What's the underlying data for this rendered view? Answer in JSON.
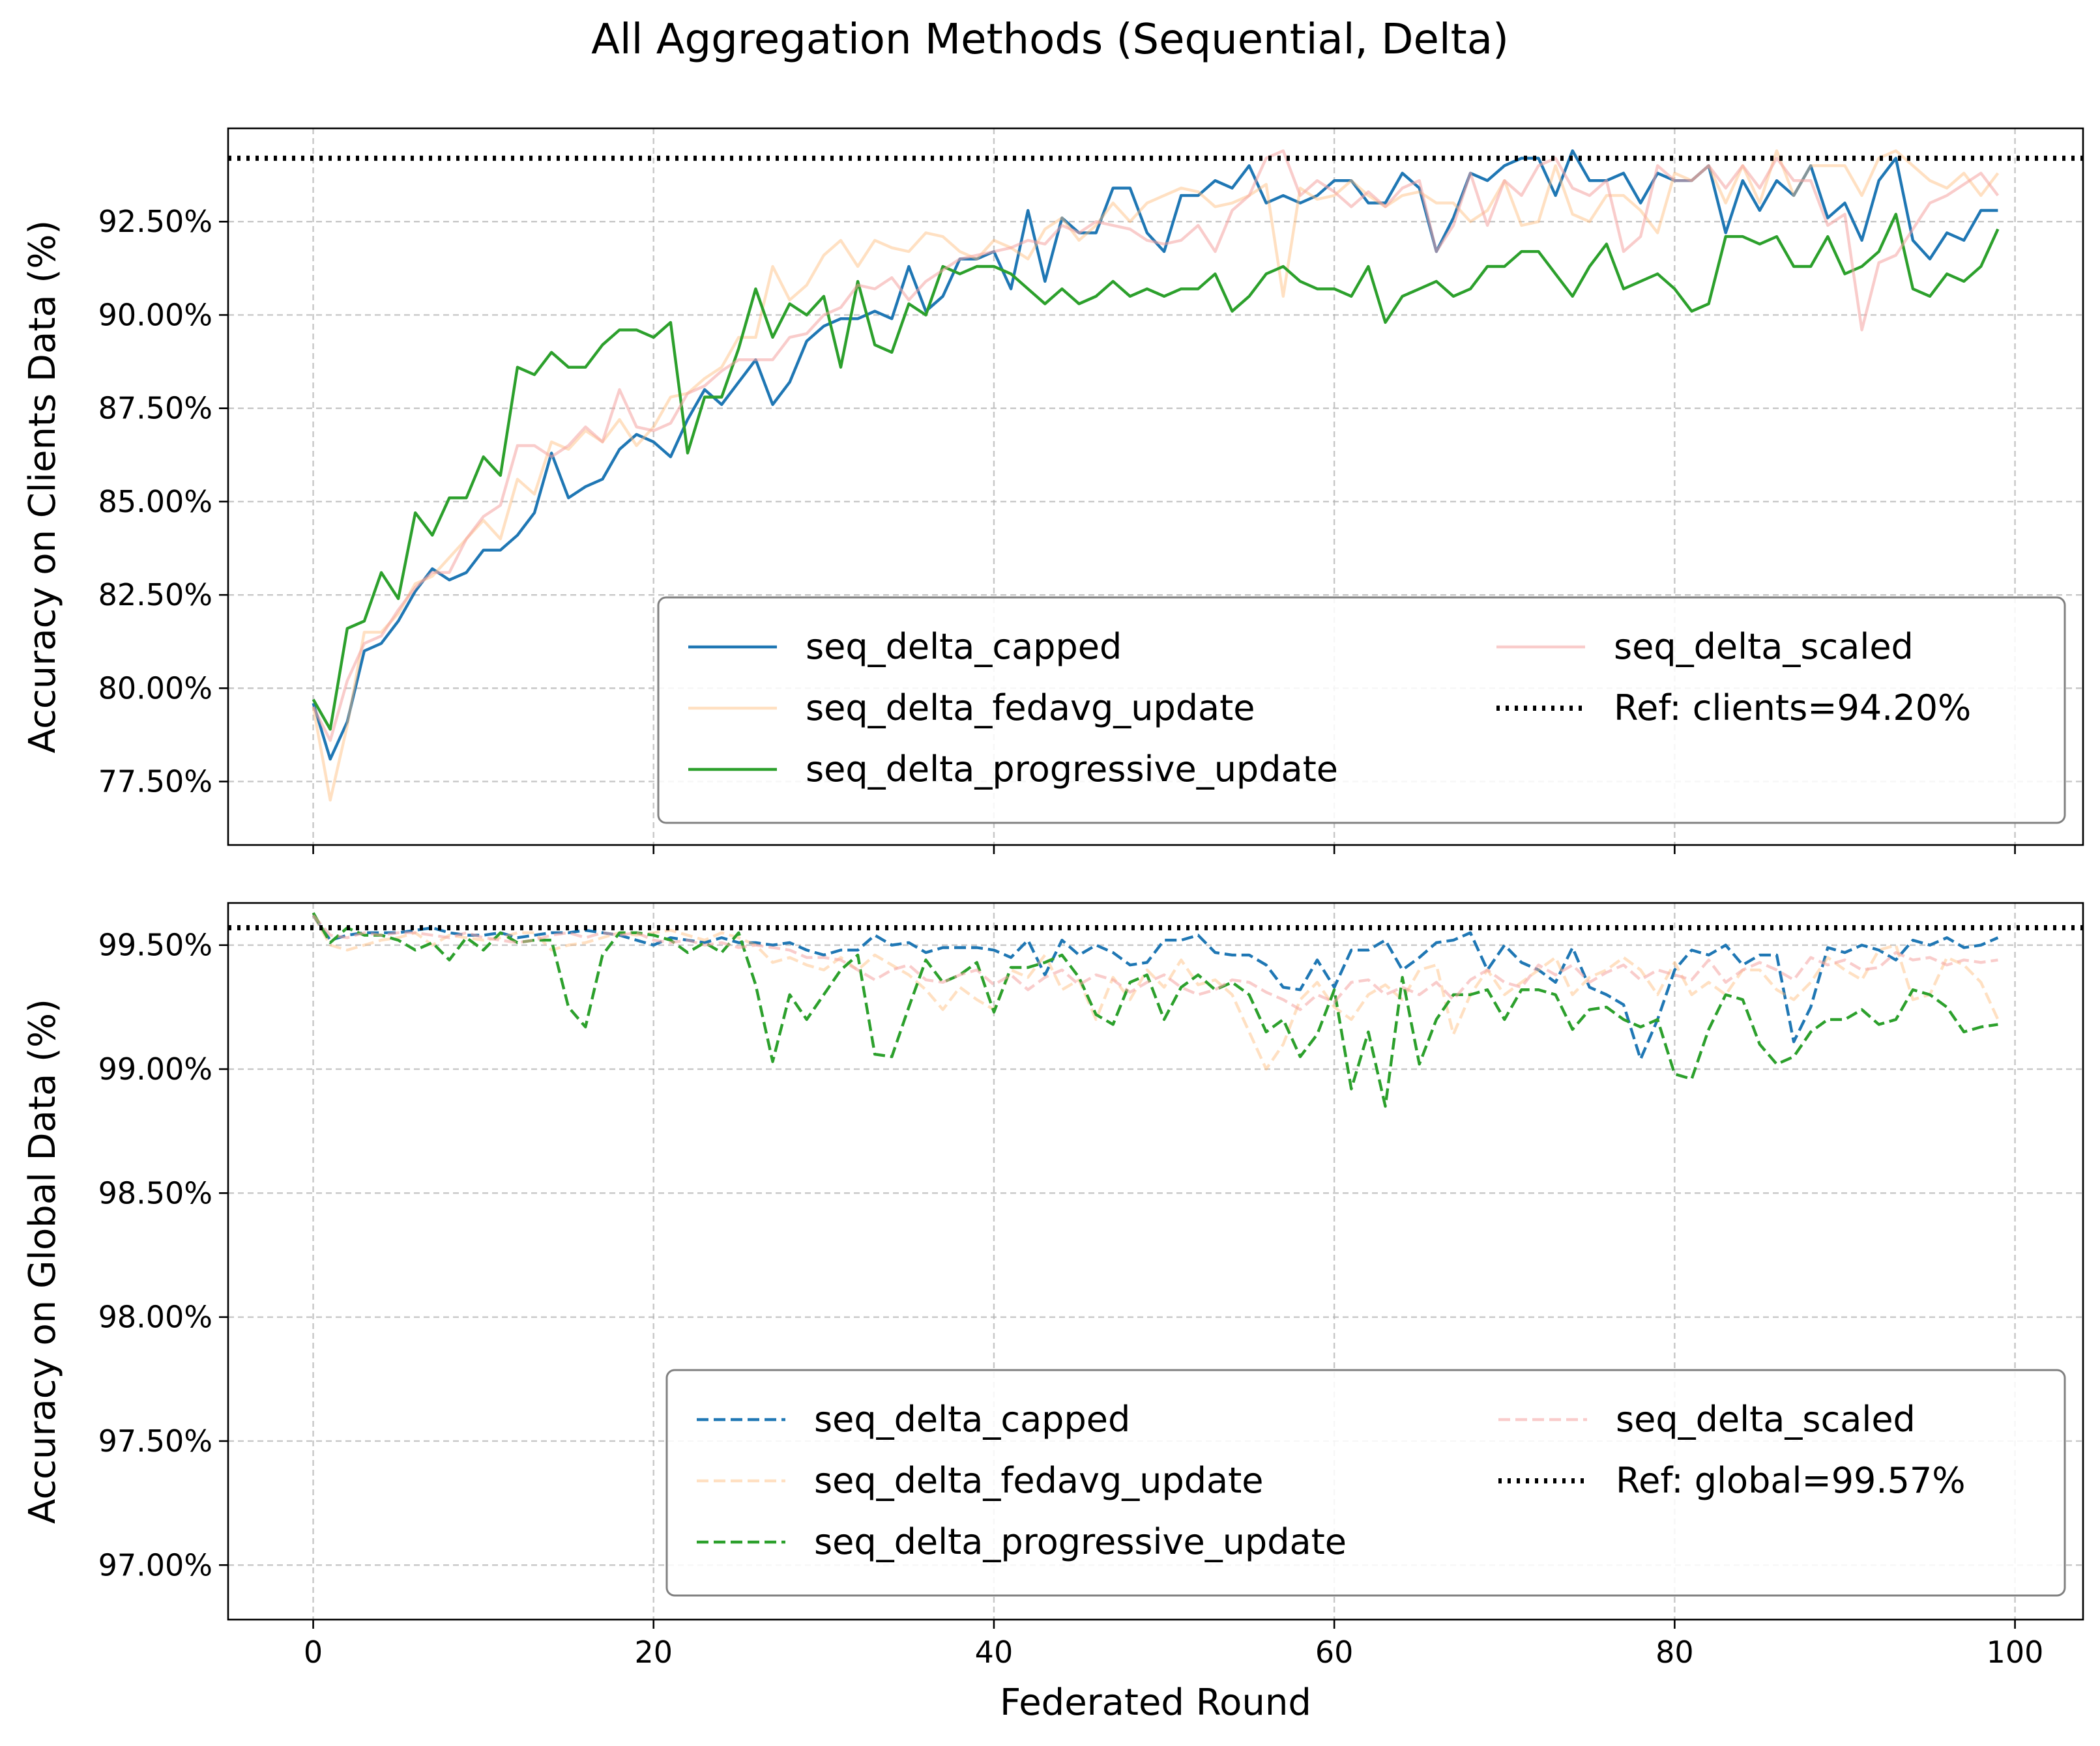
{
  "figure_title": "All Aggregation Methods (Sequential, Delta)",
  "colors": {
    "capped": "#1f77b4",
    "fedavg": "#ffbb78",
    "progressive": "#2ca02c",
    "scaled": "#f4a3a0",
    "ref": "#000000"
  },
  "chart_data": [
    {
      "type": "line",
      "ylabel": "Accuracy on Clients Data (%)",
      "xlabel": "",
      "xlim": [
        -5,
        104
      ],
      "ylim": [
        75.8,
        95.0
      ],
      "xticks": [
        0,
        20,
        40,
        60,
        80,
        100
      ],
      "yticks": [
        77.5,
        80.0,
        82.5,
        85.0,
        87.5,
        90.0,
        92.5
      ],
      "ytick_labels": [
        "77.50%",
        "80.00%",
        "82.50%",
        "85.00%",
        "87.50%",
        "90.00%",
        "92.50%"
      ],
      "grid": true,
      "legend_position": "lower-right",
      "legend_columns": 2,
      "series": [
        {
          "name": "seq_delta_capped",
          "color_key": "capped",
          "style": "solid",
          "opacity": 1.0,
          "values": [
            79.6,
            78.1,
            79.1,
            81.0,
            81.2,
            81.8,
            82.6,
            83.2,
            82.9,
            83.1,
            83.7,
            83.7,
            84.1,
            84.7,
            86.3,
            85.1,
            85.4,
            85.6,
            86.4,
            86.8,
            86.6,
            86.2,
            87.2,
            88.0,
            87.6,
            88.2,
            88.8,
            87.6,
            88.2,
            89.3,
            89.7,
            89.9,
            89.9,
            90.1,
            89.9,
            91.3,
            90.1,
            90.5,
            91.5,
            91.5,
            91.7,
            90.7,
            92.8,
            90.9,
            92.6,
            92.2,
            92.2,
            93.4,
            93.4,
            92.2,
            91.7,
            93.2,
            93.2,
            93.6,
            93.4,
            94.0,
            93.0,
            93.2,
            93.0,
            93.2,
            93.6,
            93.6,
            93.0,
            93.0,
            93.8,
            93.4,
            91.7,
            92.6,
            93.8,
            93.6,
            94.0,
            94.2,
            94.2,
            93.2,
            94.4,
            93.6,
            93.6,
            93.8,
            93.0,
            93.8,
            93.6,
            93.6,
            94.0,
            92.2,
            93.6,
            92.8,
            93.6,
            93.2,
            94.0,
            92.6,
            93.0,
            92.0,
            93.6,
            94.2,
            92.0,
            91.5,
            92.2,
            92.0,
            92.8,
            92.8
          ]
        },
        {
          "name": "seq_delta_fedavg_update",
          "color_key": "fedavg",
          "style": "solid",
          "opacity": 0.45,
          "values": [
            79.5,
            77.0,
            79.0,
            81.5,
            81.5,
            82.0,
            82.8,
            83.0,
            83.5,
            84.0,
            84.5,
            84.0,
            85.6,
            85.2,
            86.6,
            86.4,
            86.9,
            86.6,
            87.2,
            86.5,
            87.0,
            87.8,
            87.9,
            88.3,
            88.6,
            89.4,
            89.4,
            91.3,
            90.4,
            90.8,
            91.6,
            92.0,
            91.3,
            92.0,
            91.8,
            91.7,
            92.2,
            92.1,
            91.7,
            91.5,
            92.0,
            91.8,
            91.5,
            92.3,
            92.6,
            92.0,
            92.4,
            93.0,
            92.5,
            93.0,
            93.2,
            93.4,
            93.3,
            92.9,
            93.0,
            93.2,
            93.5,
            90.5,
            93.4,
            93.1,
            93.2,
            93.6,
            93.2,
            92.9,
            93.2,
            93.3,
            93.0,
            93.0,
            92.5,
            92.8,
            93.6,
            92.4,
            92.5,
            94.0,
            92.7,
            92.5,
            93.2,
            93.2,
            92.8,
            92.2,
            93.8,
            93.6,
            94.0,
            93.0,
            94.0,
            93.0,
            94.4,
            93.2,
            94.0,
            94.0,
            94.0,
            93.2,
            94.2,
            94.4,
            94.0,
            93.6,
            93.4,
            93.8,
            93.2,
            93.8
          ]
        },
        {
          "name": "seq_delta_progressive_update",
          "color_key": "progressive",
          "style": "solid",
          "opacity": 1.0,
          "values": [
            79.7,
            78.9,
            81.6,
            81.8,
            83.1,
            82.4,
            84.7,
            84.1,
            85.1,
            85.1,
            86.2,
            85.7,
            88.6,
            88.4,
            89.0,
            88.6,
            88.6,
            89.2,
            89.6,
            89.6,
            89.4,
            89.8,
            86.3,
            87.8,
            87.8,
            89.1,
            90.7,
            89.4,
            90.3,
            90.0,
            90.5,
            88.6,
            90.9,
            89.2,
            89.0,
            90.3,
            90.0,
            91.3,
            91.1,
            91.3,
            91.3,
            91.1,
            90.7,
            90.3,
            90.7,
            90.3,
            90.5,
            90.9,
            90.5,
            90.7,
            90.5,
            90.7,
            90.7,
            91.1,
            90.1,
            90.5,
            91.1,
            91.3,
            90.9,
            90.7,
            90.7,
            90.5,
            91.3,
            89.8,
            90.5,
            90.7,
            90.9,
            90.5,
            90.7,
            91.3,
            91.3,
            91.7,
            91.7,
            91.1,
            90.5,
            91.3,
            91.9,
            90.7,
            90.9,
            91.1,
            90.7,
            90.1,
            90.3,
            92.1,
            92.1,
            91.9,
            92.1,
            91.3,
            91.3,
            92.1,
            91.1,
            91.3,
            91.7,
            92.7,
            90.7,
            90.5,
            91.1,
            90.9,
            91.3,
            92.3
          ]
        },
        {
          "name": "seq_delta_scaled",
          "color_key": "scaled",
          "style": "solid",
          "opacity": 0.55,
          "values": [
            79.5,
            78.6,
            80.2,
            81.2,
            81.4,
            82.1,
            82.7,
            83.1,
            83.1,
            84.0,
            84.6,
            84.9,
            86.5,
            86.5,
            86.2,
            86.5,
            87.0,
            86.6,
            88.0,
            87.0,
            86.9,
            87.1,
            87.9,
            88.1,
            88.5,
            88.8,
            88.8,
            88.8,
            89.4,
            89.5,
            90.0,
            90.2,
            90.8,
            90.7,
            91.0,
            90.4,
            90.9,
            91.2,
            91.5,
            91.6,
            91.7,
            91.8,
            92.0,
            91.9,
            92.4,
            92.2,
            92.5,
            92.4,
            92.3,
            92.0,
            91.9,
            92.0,
            92.4,
            91.7,
            92.8,
            93.2,
            94.2,
            94.4,
            93.2,
            93.6,
            93.3,
            92.9,
            93.3,
            92.9,
            93.4,
            93.6,
            91.7,
            92.4,
            93.8,
            92.4,
            93.6,
            93.2,
            94.0,
            94.2,
            93.4,
            93.2,
            93.6,
            91.7,
            92.1,
            94.0,
            93.6,
            93.6,
            94.0,
            93.4,
            94.0,
            93.4,
            94.2,
            93.6,
            93.6,
            92.4,
            92.7,
            89.6,
            91.4,
            91.6,
            92.3,
            93.0,
            93.2,
            93.5,
            93.8,
            93.2
          ]
        },
        {
          "name": "Ref: clients=94.20%",
          "color_key": "ref",
          "style": "dotted",
          "opacity": 1.0,
          "constant": 94.2
        }
      ]
    },
    {
      "type": "line",
      "ylabel": "Accuracy on Global Data (%)",
      "xlabel": "Federated Round",
      "xlim": [
        -5,
        104
      ],
      "ylim": [
        96.78,
        99.67
      ],
      "xticks": [
        0,
        20,
        40,
        60,
        80,
        100
      ],
      "xtick_labels": [
        "0",
        "20",
        "40",
        "60",
        "80",
        "100"
      ],
      "yticks": [
        97.0,
        97.5,
        98.0,
        98.5,
        99.0,
        99.5
      ],
      "ytick_labels": [
        "97.00%",
        "97.50%",
        "98.00%",
        "98.50%",
        "99.00%",
        "99.50%"
      ],
      "grid": true,
      "legend_position": "lower-right",
      "legend_columns": 2,
      "series": [
        {
          "name": "seq_delta_capped",
          "color_key": "capped",
          "style": "dashed",
          "opacity": 1.0,
          "values": [
            99.62,
            99.52,
            99.54,
            99.55,
            99.55,
            99.55,
            99.56,
            99.57,
            99.55,
            99.54,
            99.54,
            99.55,
            99.53,
            99.54,
            99.55,
            99.55,
            99.56,
            99.55,
            99.54,
            99.52,
            99.5,
            99.53,
            99.52,
            99.51,
            99.53,
            99.51,
            99.51,
            99.5,
            99.51,
            99.48,
            99.46,
            99.48,
            99.48,
            99.54,
            99.5,
            99.51,
            99.47,
            99.49,
            99.49,
            99.49,
            99.48,
            99.45,
            99.52,
            99.38,
            99.52,
            99.46,
            99.5,
            99.47,
            99.42,
            99.43,
            99.52,
            99.52,
            99.54,
            99.47,
            99.46,
            99.46,
            99.42,
            99.33,
            99.32,
            99.44,
            99.33,
            99.48,
            99.48,
            99.52,
            99.4,
            99.45,
            99.51,
            99.52,
            99.55,
            99.4,
            99.5,
            99.43,
            99.4,
            99.35,
            99.49,
            99.33,
            99.3,
            99.26,
            99.04,
            99.2,
            99.4,
            99.48,
            99.46,
            99.5,
            99.42,
            99.46,
            99.46,
            99.11,
            99.25,
            99.49,
            99.47,
            99.5,
            99.48,
            99.44,
            99.52,
            99.5,
            99.53,
            99.49,
            99.5,
            99.53
          ]
        },
        {
          "name": "seq_delta_fedavg_update",
          "color_key": "fedavg",
          "style": "dashed",
          "opacity": 0.45,
          "values": [
            99.62,
            99.5,
            99.48,
            99.5,
            99.52,
            99.53,
            99.55,
            99.5,
            99.54,
            99.53,
            99.52,
            99.53,
            99.55,
            99.55,
            99.48,
            99.5,
            99.51,
            99.53,
            99.55,
            99.54,
            99.55,
            99.56,
            99.54,
            99.52,
            99.55,
            99.53,
            99.5,
            99.43,
            99.45,
            99.42,
            99.4,
            99.45,
            99.4,
            99.46,
            99.42,
            99.38,
            99.32,
            99.24,
            99.33,
            99.28,
            99.24,
            99.4,
            99.37,
            99.46,
            99.32,
            99.36,
            99.2,
            99.37,
            99.28,
            99.4,
            99.33,
            99.44,
            99.34,
            99.36,
            99.3,
            99.15,
            99.0,
            99.1,
            99.28,
            99.35,
            99.25,
            99.2,
            99.3,
            99.34,
            99.28,
            99.4,
            99.42,
            99.14,
            99.3,
            99.4,
            99.3,
            99.35,
            99.4,
            99.45,
            99.3,
            99.37,
            99.4,
            99.45,
            99.4,
            99.3,
            99.43,
            99.3,
            99.35,
            99.3,
            99.4,
            99.4,
            99.32,
            99.28,
            99.35,
            99.45,
            99.4,
            99.36,
            99.48,
            99.5,
            99.28,
            99.3,
            99.45,
            99.42,
            99.35,
            99.2
          ]
        },
        {
          "name": "seq_delta_progressive_update",
          "color_key": "progressive",
          "style": "dashed",
          "opacity": 1.0,
          "values": [
            99.63,
            99.51,
            99.57,
            99.54,
            99.54,
            99.52,
            99.48,
            99.51,
            99.44,
            99.53,
            99.48,
            99.55,
            99.51,
            99.52,
            99.52,
            99.25,
            99.17,
            99.46,
            99.55,
            99.55,
            99.54,
            99.52,
            99.47,
            99.51,
            99.47,
            99.55,
            99.34,
            99.03,
            99.3,
            99.2,
            99.3,
            99.4,
            99.46,
            99.06,
            99.05,
            99.25,
            99.44,
            99.35,
            99.38,
            99.43,
            99.23,
            99.41,
            99.41,
            99.43,
            99.46,
            99.37,
            99.22,
            99.18,
            99.35,
            99.38,
            99.2,
            99.33,
            99.38,
            99.32,
            99.35,
            99.3,
            99.15,
            99.2,
            99.05,
            99.14,
            99.32,
            98.92,
            99.15,
            98.85,
            99.37,
            99.02,
            99.2,
            99.3,
            99.3,
            99.32,
            99.2,
            99.32,
            99.32,
            99.3,
            99.16,
            99.24,
            99.25,
            99.2,
            99.17,
            99.2,
            98.98,
            98.96,
            99.16,
            99.3,
            99.28,
            99.1,
            99.02,
            99.05,
            99.15,
            99.2,
            99.2,
            99.24,
            99.18,
            99.2,
            99.32,
            99.3,
            99.25,
            99.15,
            99.17,
            99.18
          ]
        },
        {
          "name": "seq_delta_scaled",
          "color_key": "scaled",
          "style": "dashed",
          "opacity": 0.55,
          "values": [
            99.62,
            99.54,
            99.53,
            99.55,
            99.54,
            99.55,
            99.55,
            99.54,
            99.53,
            99.55,
            99.53,
            99.52,
            99.51,
            99.52,
            99.54,
            99.55,
            99.53,
            99.55,
            99.54,
            99.55,
            99.52,
            99.51,
            99.52,
            99.5,
            99.51,
            99.49,
            99.5,
            99.49,
            99.48,
            99.45,
            99.45,
            99.44,
            99.4,
            99.36,
            99.4,
            99.42,
            99.36,
            99.35,
            99.38,
            99.4,
            99.34,
            99.38,
            99.32,
            99.37,
            99.4,
            99.34,
            99.38,
            99.36,
            99.31,
            99.35,
            99.38,
            99.33,
            99.3,
            99.32,
            99.36,
            99.35,
            99.31,
            99.28,
            99.24,
            99.3,
            99.27,
            99.35,
            99.36,
            99.3,
            99.33,
            99.3,
            99.35,
            99.28,
            99.36,
            99.4,
            99.35,
            99.33,
            99.42,
            99.38,
            99.42,
            99.35,
            99.39,
            99.42,
            99.36,
            99.4,
            99.38,
            99.36,
            99.44,
            99.35,
            99.4,
            99.43,
            99.4,
            99.36,
            99.45,
            99.42,
            99.44,
            99.4,
            99.41,
            99.47,
            99.44,
            99.45,
            99.42,
            99.44,
            99.43,
            99.44
          ]
        },
        {
          "name": "Ref: global=99.57%",
          "color_key": "ref",
          "style": "dotted",
          "opacity": 1.0,
          "constant": 99.57
        }
      ]
    }
  ]
}
